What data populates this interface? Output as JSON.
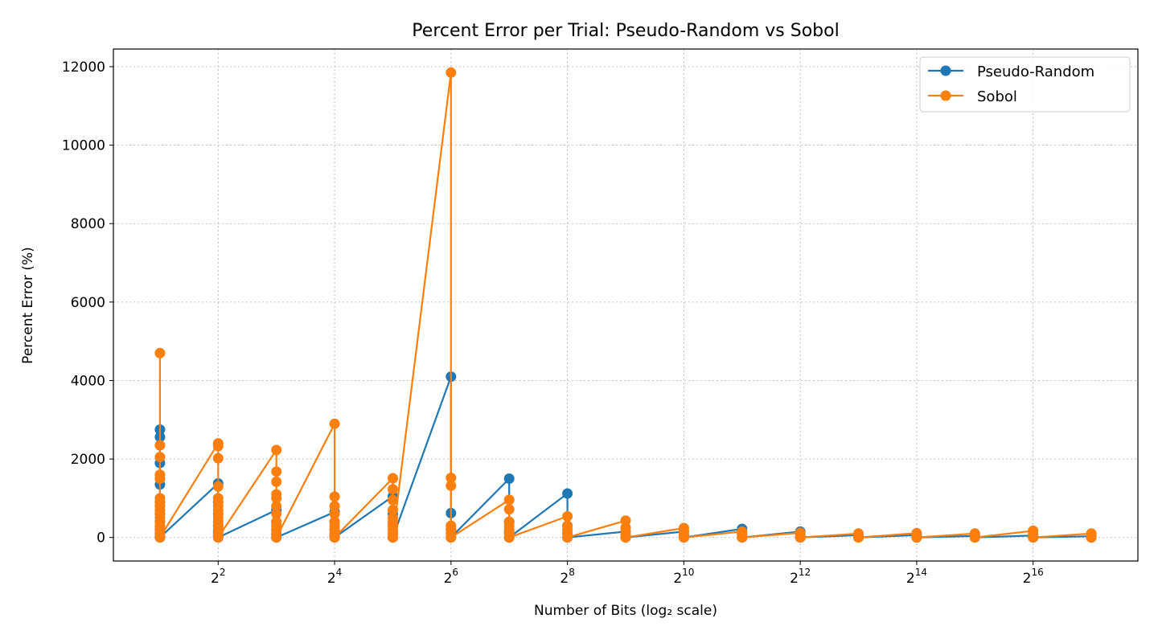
{
  "chart_data": {
    "type": "line",
    "title": "Percent Error per Trial: Pseudo-Random vs Sobol",
    "xlabel": "Number of Bits (log₂ scale)",
    "ylabel": "Percent Error (%)",
    "x_scale": "log2",
    "xlim_bits": [
      0.2,
      17.8
    ],
    "ylim": [
      -600,
      12450
    ],
    "grid": true,
    "legend_position": "top-right",
    "y_ticks": [
      0,
      2000,
      4000,
      6000,
      8000,
      10000,
      12000
    ],
    "x_ticks": [
      {
        "base": "2",
        "exp": "2",
        "bits": 2
      },
      {
        "base": "2",
        "exp": "4",
        "bits": 4
      },
      {
        "base": "2",
        "exp": "6",
        "bits": 6
      },
      {
        "base": "2",
        "exp": "8",
        "bits": 8
      },
      {
        "base": "2",
        "exp": "10",
        "bits": 10
      },
      {
        "base": "2",
        "exp": "12",
        "bits": 12
      },
      {
        "base": "2",
        "exp": "14",
        "bits": 14
      },
      {
        "base": "2",
        "exp": "16",
        "bits": 16
      }
    ],
    "series": [
      {
        "name": "Pseudo-Random",
        "color": "#1f77b4",
        "trials": [
          {
            "bits": 1,
            "errors": [
              2750,
              2560,
              1900,
              1350,
              900,
              600,
              400,
              200,
              100,
              20,
              0
            ]
          },
          {
            "bits": 2,
            "errors": [
              1380,
              900,
              600,
              300,
              150,
              50,
              0
            ]
          },
          {
            "bits": 3,
            "errors": [
              700,
              400,
              200,
              80,
              0
            ]
          },
          {
            "bits": 4,
            "errors": [
              650,
              400,
              200,
              60,
              0
            ]
          },
          {
            "bits": 5,
            "errors": [
              1050,
              600,
              300,
              100,
              0
            ]
          },
          {
            "bits": 6,
            "errors": [
              4100,
              620,
              200,
              0
            ]
          },
          {
            "bits": 7,
            "errors": [
              1500,
              400,
              150,
              0
            ]
          },
          {
            "bits": 8,
            "errors": [
              1120,
              300,
              100,
              0
            ]
          },
          {
            "bits": 9,
            "errors": [
              150,
              50,
              0
            ]
          },
          {
            "bits": 10,
            "errors": [
              150,
              50,
              0
            ]
          },
          {
            "bits": 11,
            "errors": [
              220,
              80,
              0
            ]
          },
          {
            "bits": 12,
            "errors": [
              150,
              50,
              0
            ]
          },
          {
            "bits": 13,
            "errors": [
              60,
              20,
              0
            ]
          },
          {
            "bits": 14,
            "errors": [
              60,
              20,
              0
            ]
          },
          {
            "bits": 15,
            "errors": [
              40,
              10,
              0
            ]
          },
          {
            "bits": 16,
            "errors": [
              50,
              10,
              0
            ]
          },
          {
            "bits": 17,
            "errors": [
              30,
              0
            ]
          }
        ]
      },
      {
        "name": "Sobol",
        "color": "#ff7f0e",
        "trials": [
          {
            "bits": 1,
            "errors": [
              4700,
              2350,
              2050,
              1600,
              1500,
              1000,
              900,
              800,
              700,
              600,
              500,
              400,
              300,
              200,
              100,
              0
            ]
          },
          {
            "bits": 2,
            "errors": [
              2400,
              2330,
              2020,
              1300,
              1000,
              900,
              800,
              700,
              600,
              500,
              400,
              300,
              200,
              100,
              0
            ]
          },
          {
            "bits": 3,
            "errors": [
              2230,
              1680,
              1420,
              1100,
              1000,
              800,
              600,
              400,
              300,
              200,
              100,
              0
            ]
          },
          {
            "bits": 4,
            "errors": [
              2900,
              1040,
              800,
              600,
              400,
              300,
              200,
              100,
              0
            ]
          },
          {
            "bits": 5,
            "errors": [
              1510,
              1230,
              950,
              700,
              500,
              400,
              300,
              200,
              100,
              0
            ]
          },
          {
            "bits": 6,
            "errors": [
              11850,
              1520,
              1320,
              300,
              200,
              100,
              0
            ]
          },
          {
            "bits": 7,
            "errors": [
              960,
              720,
              400,
              300,
              200,
              100,
              0
            ]
          },
          {
            "bits": 8,
            "errors": [
              540,
              300,
              200,
              100,
              0
            ]
          },
          {
            "bits": 9,
            "errors": [
              430,
              250,
              150,
              50,
              0
            ]
          },
          {
            "bits": 10,
            "errors": [
              240,
              150,
              80,
              0
            ]
          },
          {
            "bits": 11,
            "errors": [
              150,
              80,
              0
            ]
          },
          {
            "bits": 12,
            "errors": [
              120,
              60,
              0
            ]
          },
          {
            "bits": 13,
            "errors": [
              100,
              40,
              0
            ]
          },
          {
            "bits": 14,
            "errors": [
              110,
              40,
              0
            ]
          },
          {
            "bits": 15,
            "errors": [
              100,
              40,
              0
            ]
          },
          {
            "bits": 16,
            "errors": [
              170,
              80,
              0
            ]
          },
          {
            "bits": 17,
            "errors": [
              100,
              40,
              0
            ]
          }
        ]
      }
    ]
  }
}
